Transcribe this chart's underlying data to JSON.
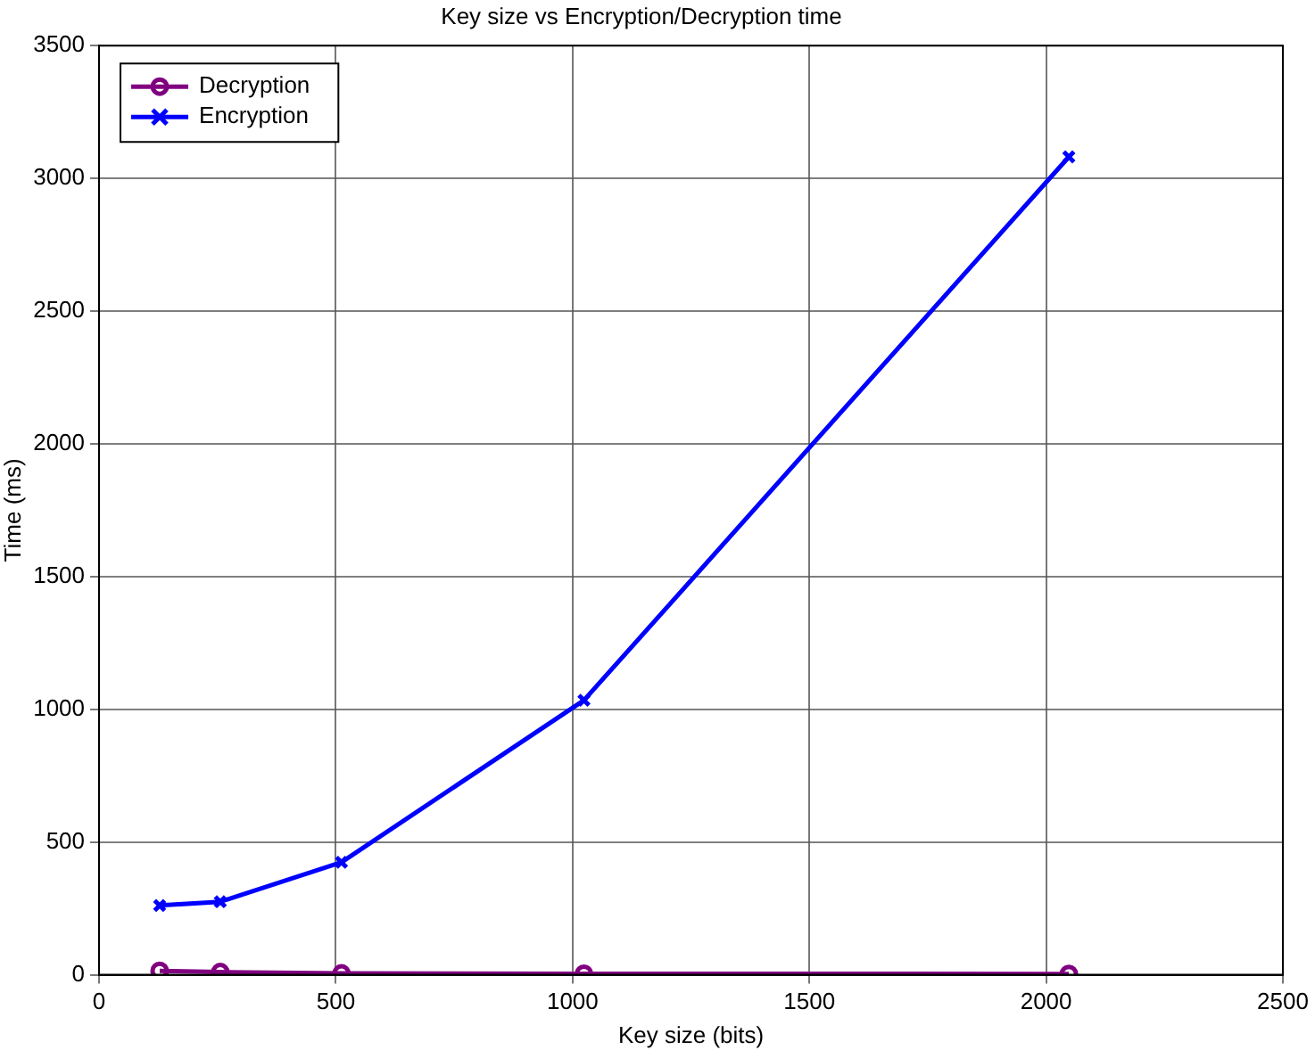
{
  "chart_data": {
    "type": "line",
    "title": "Key size vs Encryption/Decryption time",
    "xlabel": "Key size (bits)",
    "ylabel": "Time (ms)",
    "x": [
      128,
      256,
      512,
      1024,
      2048
    ],
    "series": [
      {
        "name": "Decryption",
        "color": "#800080",
        "marker": "circle",
        "values": [
          15,
          10,
          5,
          4,
          3
        ]
      },
      {
        "name": "Encryption",
        "color": "#0000ff",
        "marker": "cross",
        "values": [
          261,
          275,
          424,
          1034,
          3081
        ]
      }
    ],
    "xlim": [
      0,
      2500
    ],
    "xticks": [
      0,
      500,
      1000,
      1500,
      2000,
      2500
    ],
    "ylim": [
      0,
      3500
    ],
    "yticks": [
      0,
      500,
      1000,
      1500,
      2000,
      2500,
      3000,
      3500
    ],
    "grid": true,
    "legend": "top left",
    "line_style": "solid"
  }
}
